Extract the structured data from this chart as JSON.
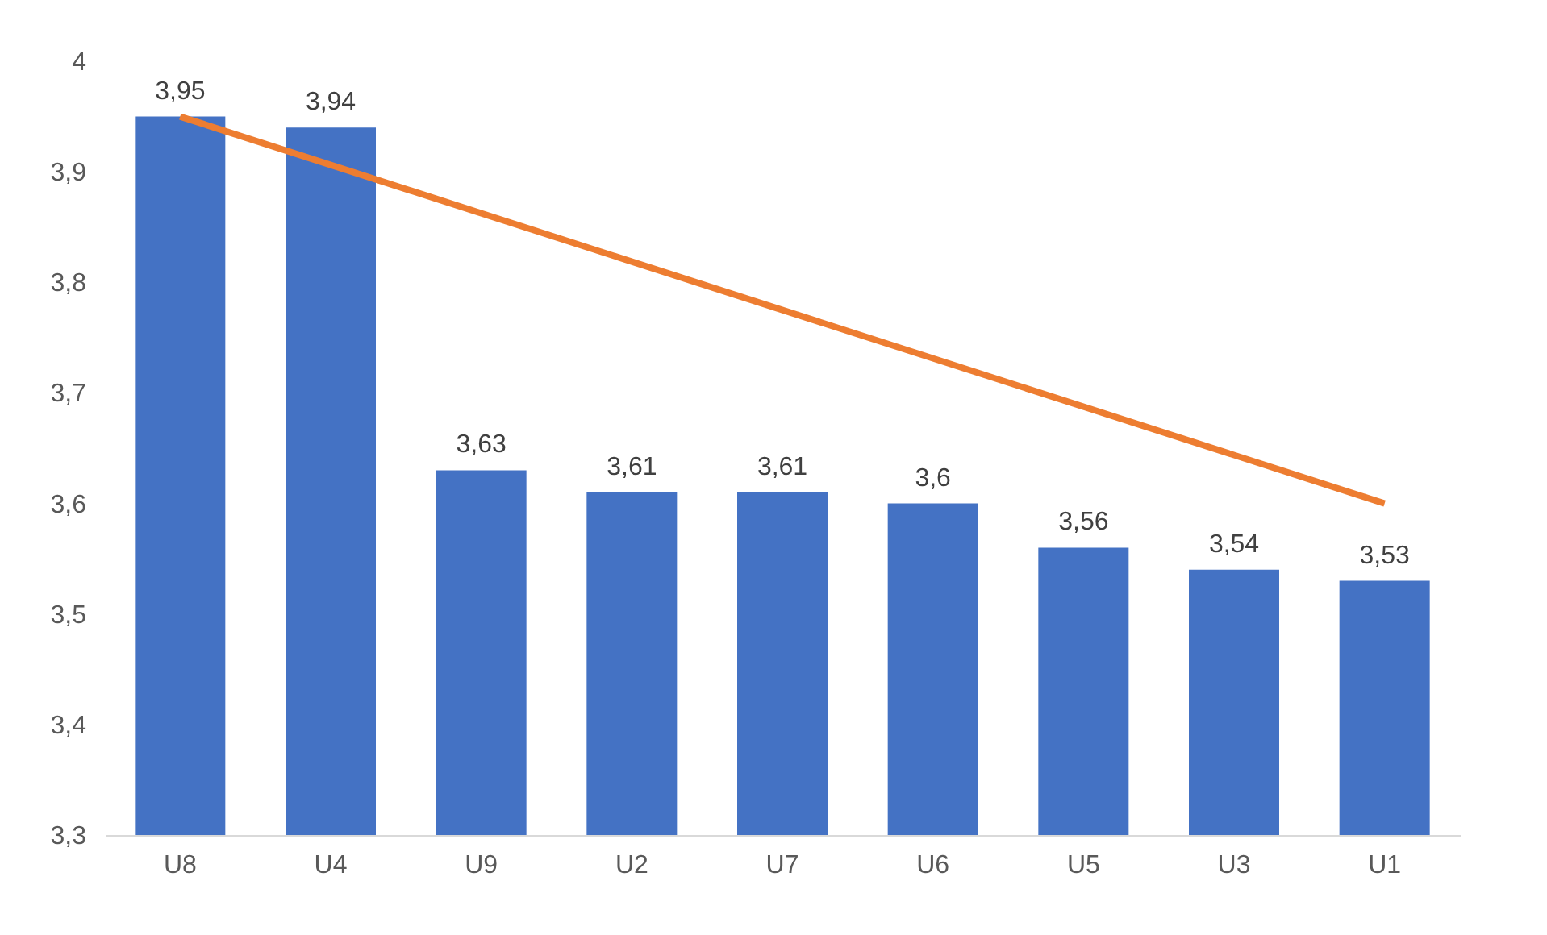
{
  "chart_data": {
    "type": "bar",
    "categories": [
      "U8",
      "U4",
      "U9",
      "U2",
      "U7",
      "U6",
      "U5",
      "U3",
      "U1"
    ],
    "series": [
      {
        "color": "#4472c4",
        "values": [
          3.95,
          3.94,
          3.63,
          3.61,
          3.61,
          3.6,
          3.56,
          3.54,
          3.53
        ],
        "value_labels": [
          "3,95",
          "3,94",
          "3,63",
          "3,61",
          "3,61",
          "3,6",
          "3,56",
          "3,54",
          "3,53"
        ]
      },
      {
        "type": "line",
        "color": "#ed7d31",
        "x": [
          "U8",
          "U1"
        ],
        "values": [
          3.95,
          3.6
        ]
      }
    ],
    "ylim": [
      3.3,
      4
    ],
    "yticks": [
      {
        "value": 3.3,
        "label": "3,3"
      },
      {
        "value": 3.4,
        "label": "3,4"
      },
      {
        "value": 3.5,
        "label": "3,5"
      },
      {
        "value": 3.6,
        "label": "3,6"
      },
      {
        "value": 3.7,
        "label": "3,7"
      },
      {
        "value": 3.8,
        "label": "3,8"
      },
      {
        "value": 3.9,
        "label": "3,9"
      },
      {
        "value": 4,
        "label": "4"
      }
    ],
    "grid": false
  }
}
